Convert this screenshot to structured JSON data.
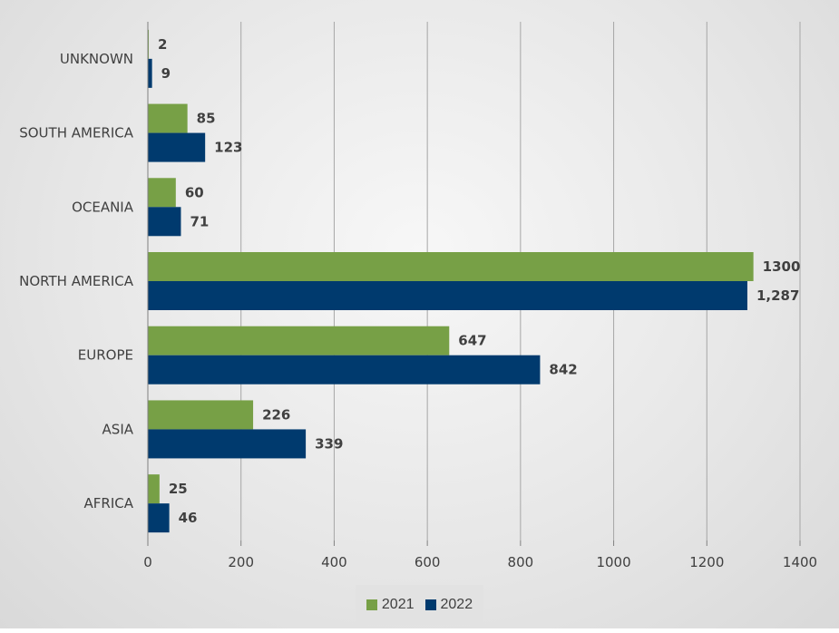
{
  "chart_data": {
    "type": "bar",
    "orientation": "horizontal",
    "title": "",
    "xlabel": "",
    "ylabel": "",
    "categories": [
      "UNKNOWN",
      "SOUTH AMERICA",
      "OCEANIA",
      "NORTH AMERICA",
      "EUROPE",
      "ASIA",
      "AFRICA"
    ],
    "series": [
      {
        "name": "2021",
        "color": "#77a046",
        "values": [
          2,
          85,
          60,
          1300,
          647,
          226,
          25
        ],
        "labels": [
          "2",
          "85",
          "60",
          "1300",
          "647",
          "226",
          "25"
        ]
      },
      {
        "name": "2022",
        "color": "#003a6e",
        "values": [
          9,
          123,
          71,
          1287,
          842,
          339,
          46
        ],
        "labels": [
          "9",
          "123",
          "71",
          "1,287",
          "842",
          "339",
          "46"
        ]
      }
    ],
    "xlim": [
      0,
      1400
    ],
    "xticks": [
      0,
      200,
      400,
      600,
      800,
      1000,
      1200,
      1400
    ],
    "grid": true,
    "legend": "bottom"
  }
}
